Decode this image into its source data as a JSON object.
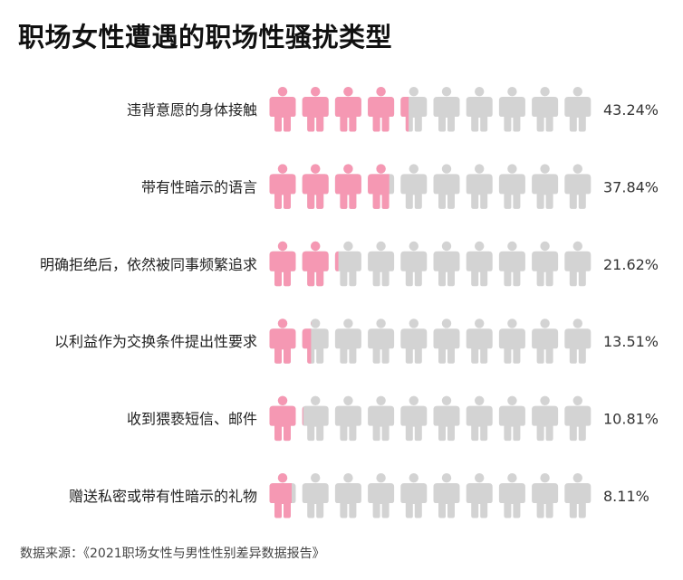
{
  "title": "职场女性遭遇的职场性骚扰类型",
  "source": "数据来源：《2021职场女性与男性性别差异数据报告》",
  "colors": {
    "filled": "#f598b3",
    "empty": "#d3d3d3"
  },
  "chart_data": {
    "type": "bar",
    "encoding": "pictogram",
    "icons_per_row": 10,
    "unit": "%",
    "categories": [
      "违背意愿的身体接触",
      "带有性暗示的语言",
      "明确拒绝后，依然被同事频繁追求",
      "以利益作为交换条件提出性要求",
      "收到猥亵短信、邮件",
      "赠送私密或带有性暗示的礼物"
    ],
    "values": [
      43.24,
      37.84,
      21.62,
      13.51,
      10.81,
      8.11
    ],
    "value_labels": [
      "43.24%",
      "37.84%",
      "21.62%",
      "13.51%",
      "10.81%",
      "8.11%"
    ],
    "xlim": [
      0,
      100
    ]
  }
}
